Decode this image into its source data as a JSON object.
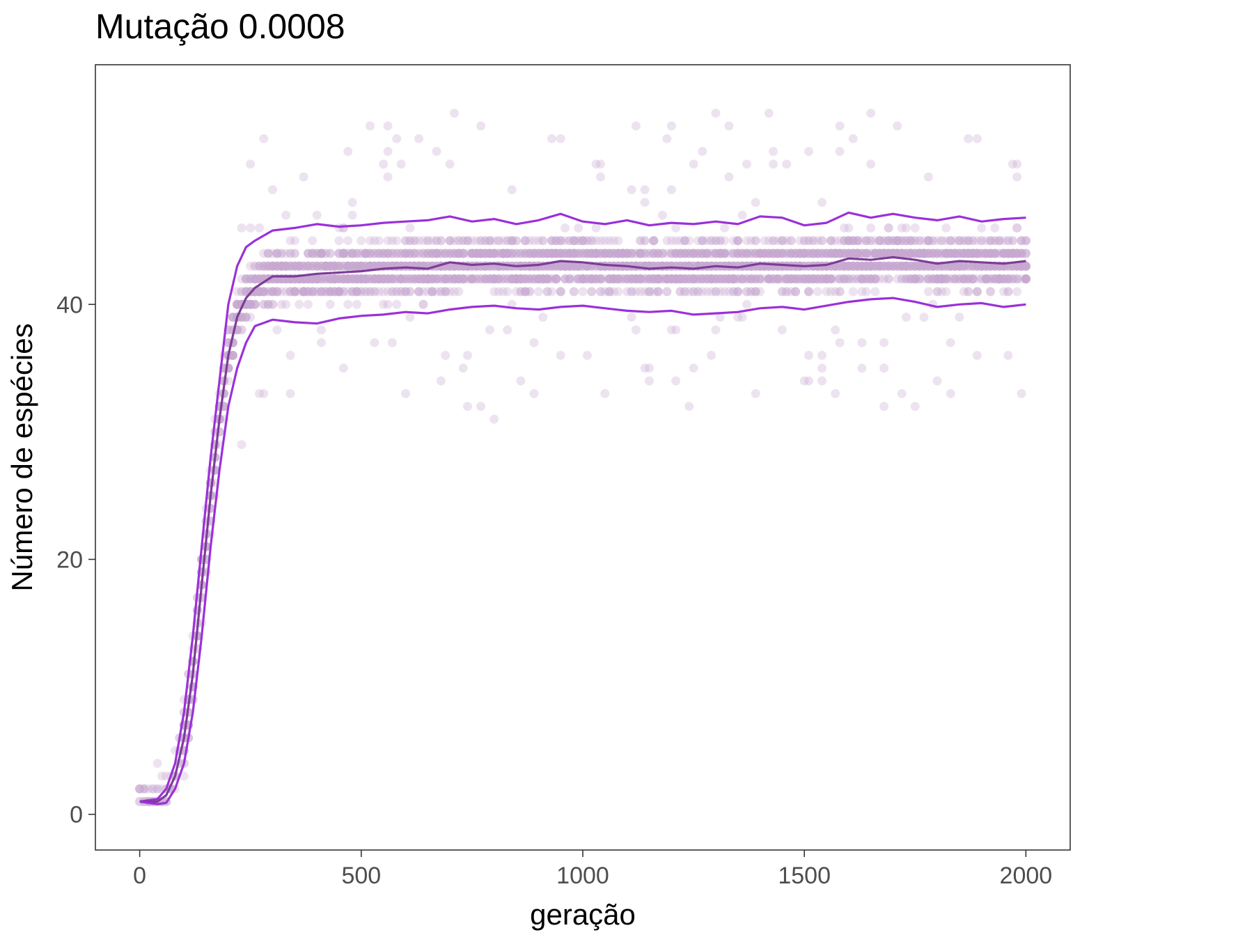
{
  "chart_data": {
    "type": "scatter",
    "title": "Mutação 0.0008",
    "xlabel": "geração",
    "ylabel": "Número de espécies",
    "xlim": [
      -100,
      2100
    ],
    "ylim": [
      -2.8,
      58.8
    ],
    "x_ticks": [
      0,
      500,
      1000,
      1500,
      2000
    ],
    "x_tick_labels": [
      "0",
      "500",
      "1000",
      "1500",
      "2000"
    ],
    "y_ticks": [
      0,
      20,
      40
    ],
    "y_tick_labels": [
      "0",
      "20",
      "40"
    ],
    "grid": false,
    "legend": "none",
    "colors": {
      "points": "#c7a8d1",
      "median_line": "#7d3c98",
      "quantile_lines": "#9b30d9",
      "panel_border": "#333333"
    },
    "point_sampling": {
      "x_step": 10,
      "x_range": [
        0,
        2000
      ],
      "plateau_center": 42.5,
      "plateau_min": 29,
      "plateau_max": 56
    },
    "series": [
      {
        "role": "upper-quantile",
        "x": [
          0,
          40,
          60,
          80,
          100,
          120,
          140,
          160,
          180,
          200,
          220,
          240,
          260,
          300,
          350,
          400,
          450,
          500,
          550,
          600,
          650,
          700,
          750,
          800,
          850,
          900,
          950,
          1000,
          1050,
          1100,
          1150,
          1200,
          1250,
          1300,
          1350,
          1400,
          1450,
          1500,
          1550,
          1600,
          1650,
          1700,
          1750,
          1800,
          1850,
          1900,
          1950,
          2000
        ],
        "y": [
          1,
          1.2,
          2,
          4,
          8,
          14,
          21,
          28,
          34,
          40,
          43,
          44.5,
          45,
          45.8,
          46,
          46.3,
          46.1,
          46.2,
          46.4,
          46.5,
          46.6,
          46.9,
          46.5,
          46.7,
          46.3,
          46.6,
          47.1,
          46.5,
          46.3,
          46.6,
          46.2,
          46.4,
          46.3,
          46.5,
          46.3,
          46.9,
          46.8,
          46.2,
          46.4,
          47.2,
          46.8,
          47.1,
          46.8,
          46.6,
          46.9,
          46.5,
          46.7,
          46.8
        ]
      },
      {
        "role": "median",
        "x": [
          0,
          40,
          60,
          80,
          100,
          120,
          140,
          160,
          180,
          200,
          220,
          240,
          260,
          300,
          350,
          400,
          450,
          500,
          550,
          600,
          650,
          700,
          750,
          800,
          850,
          900,
          950,
          1000,
          1050,
          1100,
          1150,
          1200,
          1250,
          1300,
          1350,
          1400,
          1450,
          1500,
          1550,
          1600,
          1650,
          1700,
          1750,
          1800,
          1850,
          1900,
          1950,
          2000
        ],
        "y": [
          1,
          1,
          1.5,
          3,
          6,
          11,
          18,
          25,
          31,
          36,
          39,
          40.5,
          41.3,
          42.2,
          42.2,
          42.4,
          42.5,
          42.6,
          42.8,
          42.9,
          42.8,
          43.3,
          43.1,
          43.2,
          43.0,
          43.1,
          43.4,
          43.3,
          43.1,
          43.0,
          42.8,
          42.9,
          42.8,
          43.0,
          42.9,
          43.2,
          43.1,
          43.0,
          43.1,
          43.6,
          43.5,
          43.7,
          43.5,
          43.2,
          43.4,
          43.3,
          43.2,
          43.4
        ]
      },
      {
        "role": "lower-quantile",
        "x": [
          0,
          40,
          60,
          80,
          100,
          120,
          140,
          160,
          180,
          200,
          220,
          240,
          260,
          300,
          350,
          400,
          450,
          500,
          550,
          600,
          650,
          700,
          750,
          800,
          850,
          900,
          950,
          1000,
          1050,
          1100,
          1150,
          1200,
          1250,
          1300,
          1350,
          1400,
          1450,
          1500,
          1550,
          1600,
          1650,
          1700,
          1750,
          1800,
          1850,
          1900,
          1950,
          2000
        ],
        "y": [
          1,
          0.8,
          0.9,
          2,
          4,
          8,
          14,
          21,
          27,
          32,
          35,
          37,
          38.3,
          38.8,
          38.6,
          38.5,
          38.9,
          39.1,
          39.2,
          39.4,
          39.3,
          39.6,
          39.8,
          39.9,
          39.7,
          39.6,
          39.8,
          39.9,
          39.7,
          39.5,
          39.4,
          39.5,
          39.2,
          39.3,
          39.4,
          39.7,
          39.8,
          39.6,
          39.9,
          40.2,
          40.4,
          40.5,
          40.2,
          39.8,
          40.0,
          40.1,
          39.8,
          40.0
        ]
      }
    ]
  }
}
